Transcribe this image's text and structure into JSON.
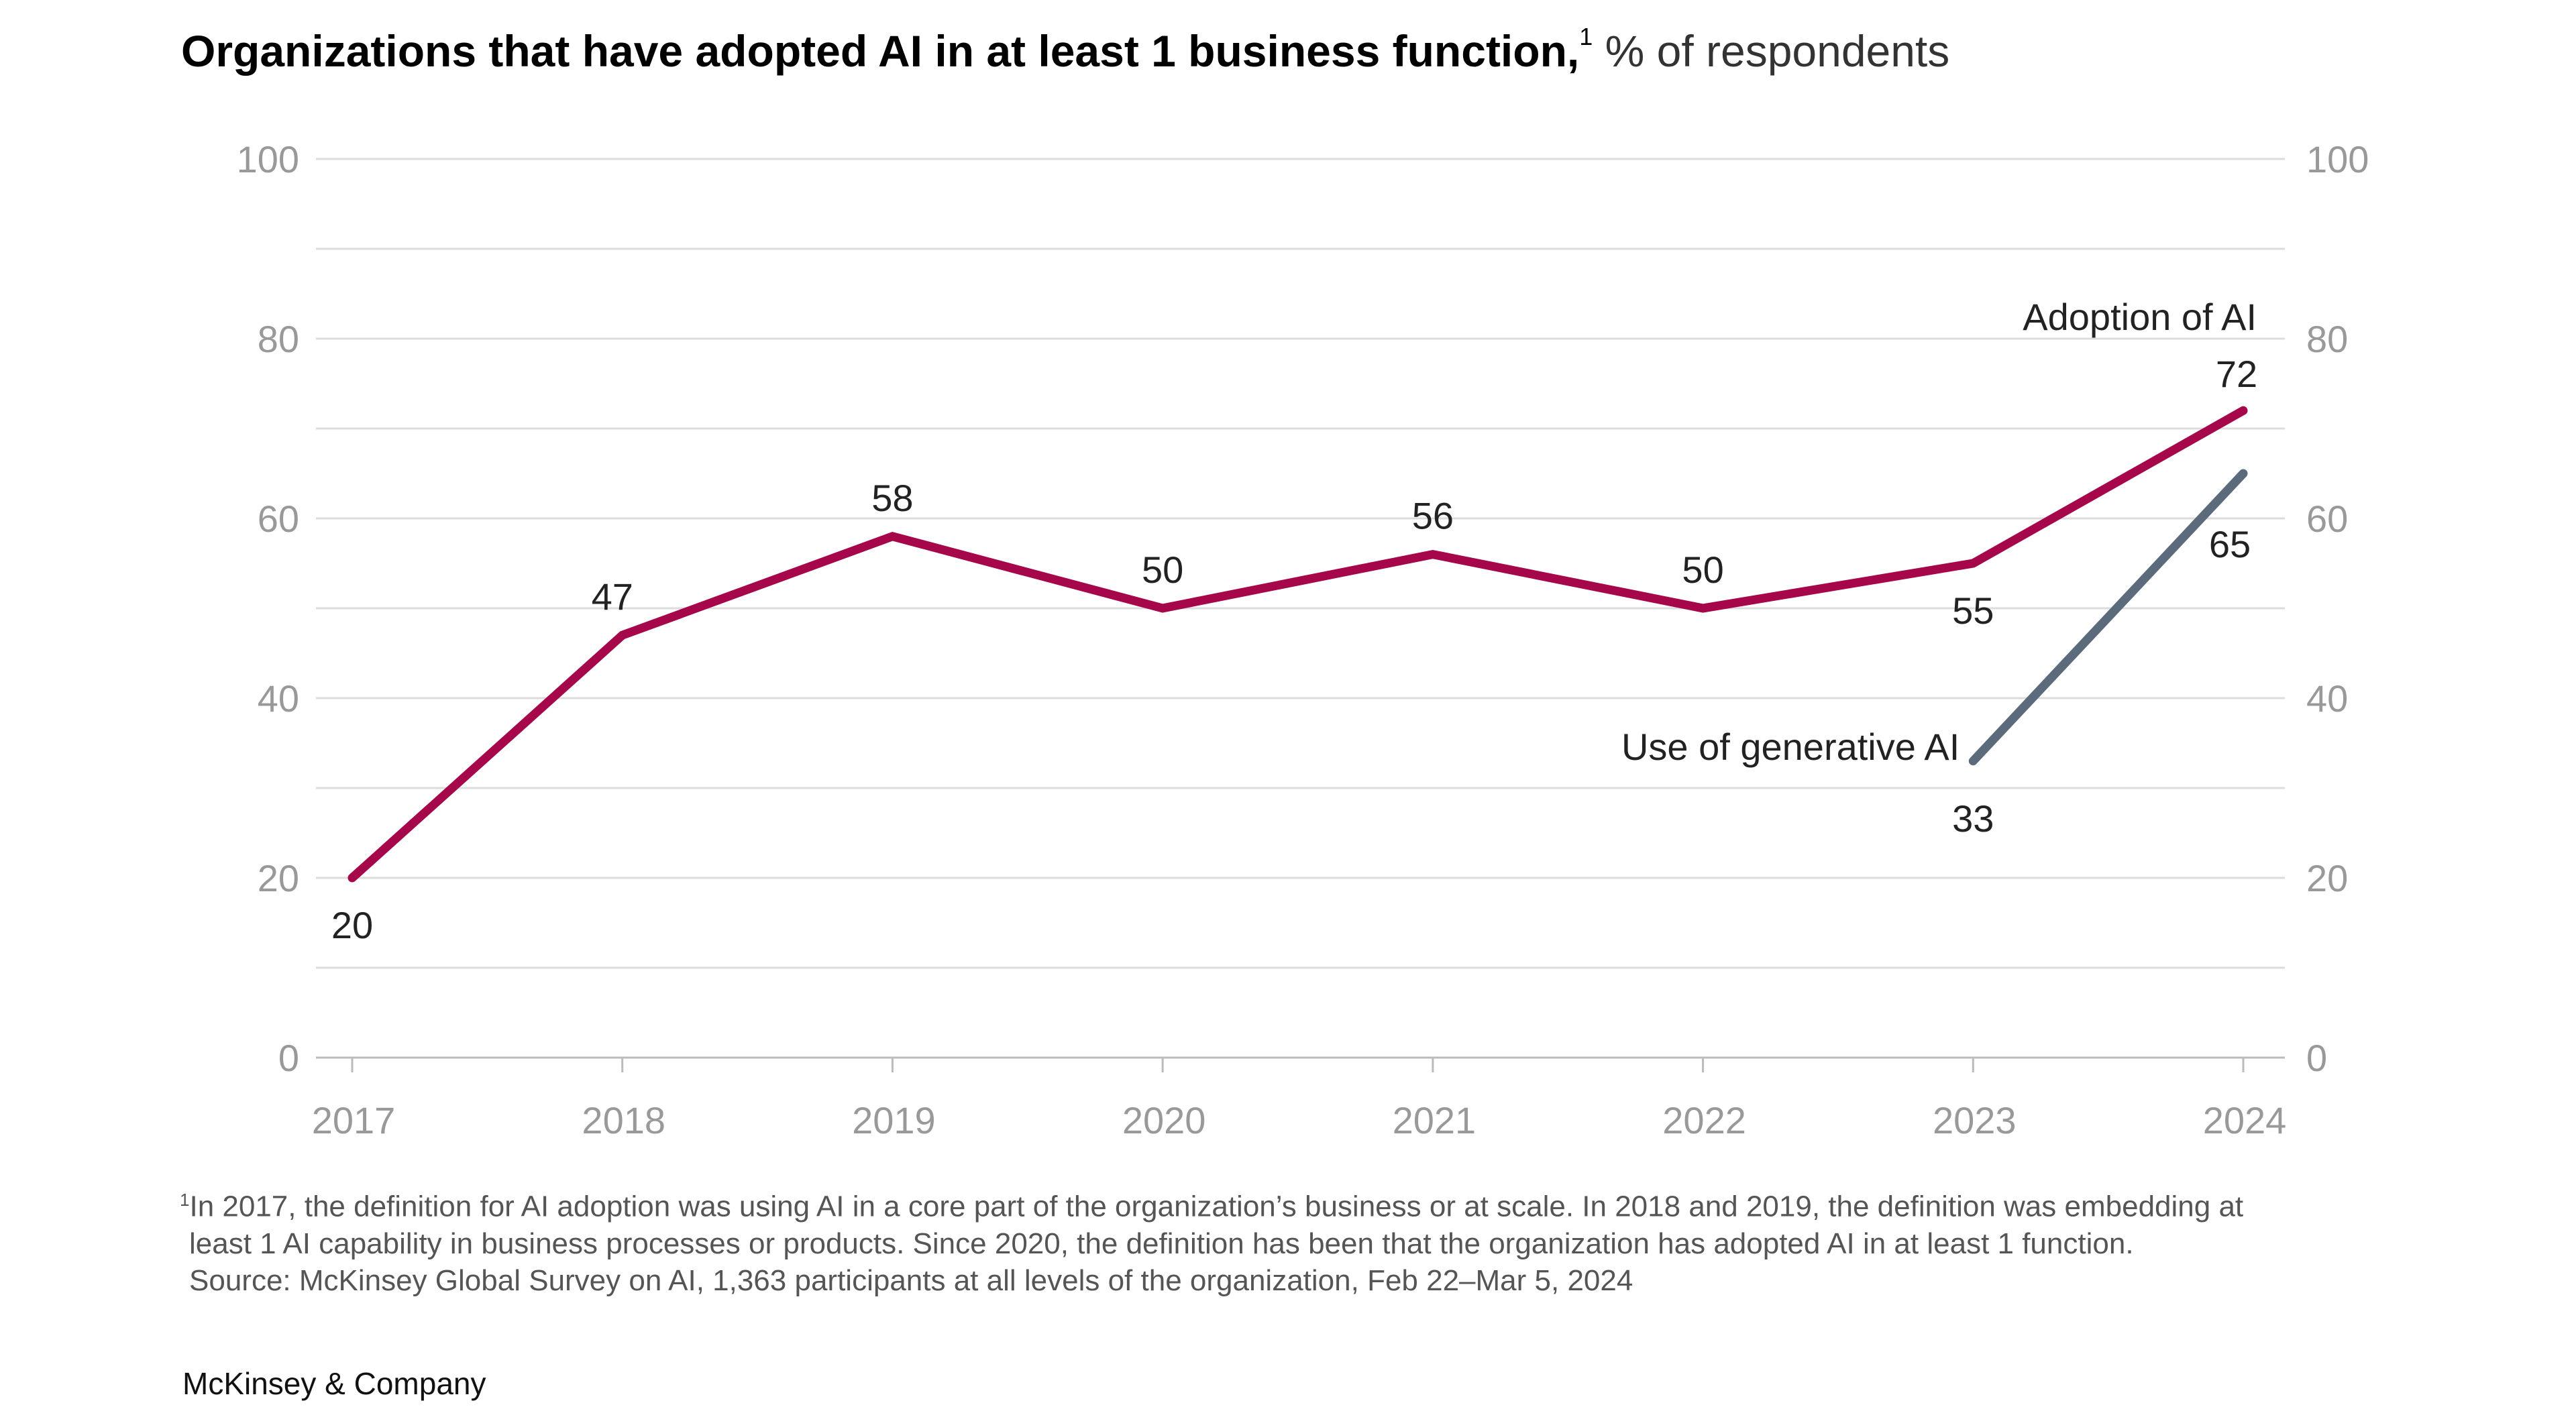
{
  "title": {
    "main": "Organizations that have adopted AI in at least 1 business function,",
    "footnote_marker": "1",
    "unit": "% of respondents"
  },
  "chart_data": {
    "type": "line",
    "title": "Organizations that have adopted AI in at least 1 business function, % of respondents",
    "x": [
      "2017",
      "2018",
      "2019",
      "2020",
      "2021",
      "2022",
      "2023",
      "2024"
    ],
    "ylim": [
      0,
      100
    ],
    "yticks": [
      0,
      20,
      40,
      60,
      80,
      100
    ],
    "ytick_labels": [
      "0",
      "20",
      "40",
      "60",
      "80",
      "100"
    ],
    "grid": true,
    "secondary_y_axis_mirrored": true,
    "series": [
      {
        "name": "Adoption of AI",
        "color": "#a6064a",
        "x": [
          "2017",
          "2018",
          "2019",
          "2020",
          "2021",
          "2022",
          "2023",
          "2024"
        ],
        "values": [
          20,
          47,
          58,
          50,
          56,
          50,
          55,
          72
        ]
      },
      {
        "name": "Use of generative AI",
        "color": "#5b6b7b",
        "x": [
          "2023",
          "2024"
        ],
        "values": [
          33,
          65
        ]
      }
    ]
  },
  "footnotes": {
    "marker": "1",
    "line1": "In 2017, the definition for AI adoption was using AI in a core part of the organization’s business or at scale. In 2018 and 2019, the definition was embedding at",
    "line2": "least 1 AI capability in business processes or products. Since 2020, the definition has been that the organization has adopted AI in at least 1 function.",
    "source": "Source: McKinsey Global Survey on AI, 1,363 participants at all levels of the organization, Feb 22–Mar 5, 2024"
  },
  "brand": "McKinsey & Company"
}
